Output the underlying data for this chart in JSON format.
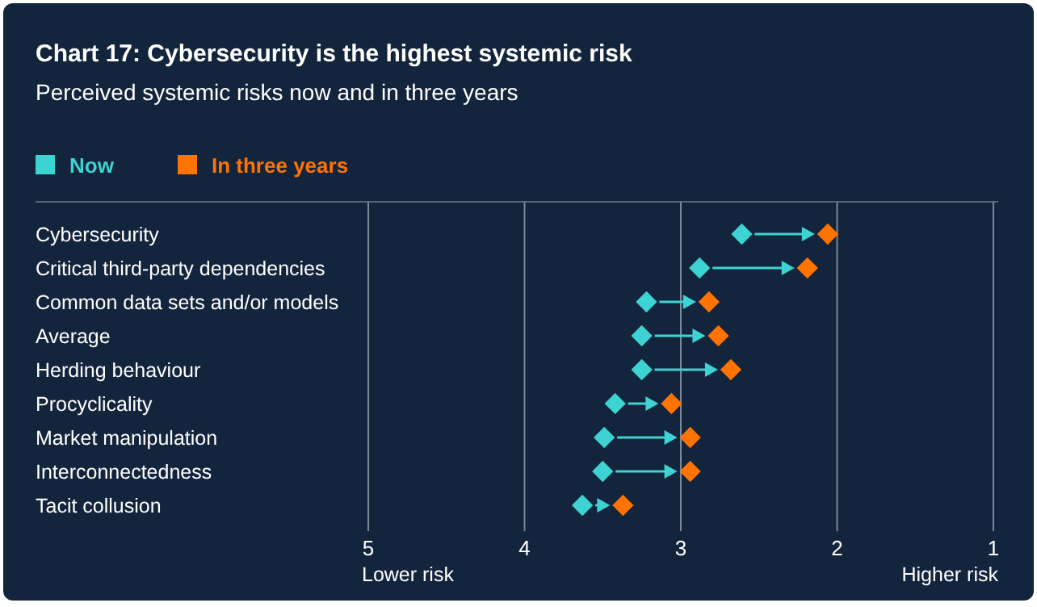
{
  "chart_data": {
    "type": "scatter",
    "orientation": "horizontal",
    "title": "Chart 17: Cybersecurity is the highest systemic risk",
    "subtitle": "Perceived systemic risks now and in three years",
    "categories": [
      "Cybersecurity",
      "Critical third-party dependencies",
      "Common data sets and/or models",
      "Average",
      "Herding behaviour",
      "Procyclicality",
      "Market manipulation",
      "Interconnectedness",
      "Tacit collusion"
    ],
    "series": [
      {
        "name": "Now",
        "color": "#3ed3d3",
        "values": [
          2.61,
          2.88,
          3.22,
          3.25,
          3.25,
          3.42,
          3.49,
          3.5,
          3.63
        ]
      },
      {
        "name": "In three years",
        "color": "#ff7300",
        "values": [
          2.06,
          2.19,
          2.82,
          2.76,
          2.68,
          3.06,
          2.94,
          2.94,
          3.37
        ]
      }
    ],
    "xlim": [
      5,
      1
    ],
    "xticks": [
      5,
      4,
      3,
      2,
      1
    ],
    "grid": "x",
    "legend": "top left",
    "marker": "diamond",
    "annotations": [
      "Lower risk",
      "Higher risk"
    ]
  }
}
